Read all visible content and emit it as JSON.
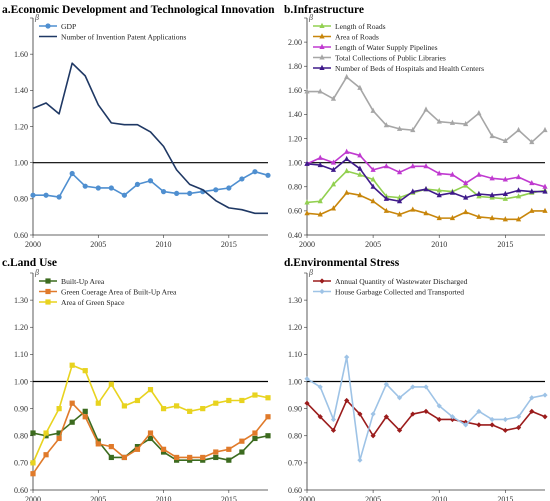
{
  "colors": {
    "axis": "#333333",
    "ref": "#000000",
    "grid": "#d9d9d9",
    "gdp": "#4f8fd0",
    "patent": "#1f3864",
    "roads_len": "#92d050",
    "roads_area": "#c8860b",
    "pipes": "#c03ad0",
    "libraries": "#a6a6a6",
    "beds": "#3f1a8a",
    "built_up": "#3c6b1f",
    "green_cov": "#e07a2a",
    "green_space": "#e8d31f",
    "wastewater": "#9b1c1c",
    "garbage": "#9ec3e6"
  },
  "chart_data": [
    {
      "id": "a",
      "type": "line",
      "title": "a.Economic Development and Technological Innovation",
      "ylabel": "β",
      "ylim": [
        0.6,
        1.8
      ],
      "yticks": [
        "0.60",
        "0.80",
        "1.00",
        "1.20",
        "1.40",
        "1.60",
        "1.80"
      ],
      "xlim": [
        2000,
        2018
      ],
      "xticks": [
        "2000",
        "2005",
        "2010",
        "2015"
      ],
      "reference_line": 1.0,
      "legend_position": "top-left",
      "series": [
        {
          "name": "GDP",
          "color": "gdp",
          "marker": "circle",
          "values": [
            0.82,
            0.82,
            0.81,
            0.94,
            0.87,
            0.86,
            0.86,
            0.82,
            0.88,
            0.9,
            0.84,
            0.83,
            0.83,
            0.84,
            0.85,
            0.86,
            0.91,
            0.95,
            0.93
          ]
        },
        {
          "name": "Number of Invention Patent Applications",
          "color": "patent",
          "marker": "none",
          "values": [
            1.3,
            1.33,
            1.27,
            1.55,
            1.48,
            1.32,
            1.22,
            1.21,
            1.21,
            1.17,
            1.09,
            0.96,
            0.88,
            0.85,
            0.79,
            0.75,
            0.74,
            0.72,
            0.72
          ]
        }
      ]
    },
    {
      "id": "b",
      "type": "line",
      "title": "b.Infrastructure",
      "ylabel": "β",
      "ylim": [
        0.4,
        2.2
      ],
      "yticks": [
        "0.40",
        "0.60",
        "0.80",
        "1.00",
        "1.20",
        "1.40",
        "1.60",
        "1.80",
        "2.00",
        "2.20"
      ],
      "xlim": [
        2000,
        2018
      ],
      "xticks": [
        "2000",
        "2005",
        "2010",
        "2015"
      ],
      "reference_line": 1.0,
      "legend_position": "top-left",
      "series": [
        {
          "name": "Length of Roads",
          "color": "roads_len",
          "marker": "triangle",
          "values": [
            0.67,
            0.68,
            0.82,
            0.93,
            0.9,
            0.86,
            0.72,
            0.71,
            0.75,
            0.78,
            0.77,
            0.76,
            0.81,
            0.72,
            0.71,
            0.7,
            0.72,
            0.75,
            0.77
          ]
        },
        {
          "name": "Area of Roads",
          "color": "roads_area",
          "marker": "triangle",
          "values": [
            0.58,
            0.57,
            0.62,
            0.75,
            0.73,
            0.68,
            0.6,
            0.57,
            0.61,
            0.58,
            0.54,
            0.54,
            0.59,
            0.55,
            0.54,
            0.53,
            0.53,
            0.6,
            0.6
          ]
        },
        {
          "name": "Length of Water Supply Pipelines",
          "color": "pipes",
          "marker": "triangle",
          "values": [
            0.99,
            1.04,
            1.0,
            1.09,
            1.06,
            0.94,
            0.97,
            0.92,
            0.97,
            0.97,
            0.91,
            0.9,
            0.83,
            0.9,
            0.87,
            0.86,
            0.88,
            0.83,
            0.8
          ]
        },
        {
          "name": "Total Collections of Public Libraries",
          "color": "libraries",
          "marker": "triangle",
          "values": [
            1.59,
            1.59,
            1.53,
            1.71,
            1.62,
            1.43,
            1.31,
            1.28,
            1.27,
            1.44,
            1.34,
            1.33,
            1.32,
            1.41,
            1.22,
            1.18,
            1.27,
            1.17,
            1.27
          ]
        },
        {
          "name": "Number of Beds of Hospitals and Health Centers",
          "color": "beds",
          "marker": "triangle",
          "values": [
            0.99,
            0.98,
            0.94,
            1.03,
            0.95,
            0.8,
            0.7,
            0.68,
            0.76,
            0.78,
            0.73,
            0.75,
            0.71,
            0.74,
            0.73,
            0.74,
            0.77,
            0.76,
            0.76
          ]
        }
      ]
    },
    {
      "id": "c",
      "type": "line",
      "title": "c.Land Use",
      "ylabel": "β",
      "ylim": [
        0.6,
        1.4
      ],
      "yticks": [
        "0.60",
        "0.70",
        "0.80",
        "0.90",
        "1.00",
        "1.10",
        "1.20",
        "1.30",
        "1.40"
      ],
      "xlim": [
        2000,
        2018
      ],
      "xticks": [
        "2000",
        "2005",
        "2010",
        "2015"
      ],
      "reference_line": 1.0,
      "legend_position": "top-left",
      "series": [
        {
          "name": "Built-Up Area",
          "color": "built_up",
          "marker": "square",
          "values": [
            0.81,
            0.8,
            0.81,
            0.85,
            0.89,
            0.78,
            0.72,
            0.72,
            0.76,
            0.79,
            0.74,
            0.71,
            0.71,
            0.71,
            0.72,
            0.71,
            0.74,
            0.79,
            0.8
          ]
        },
        {
          "name": "Green Coerage Area of Built-Up Area",
          "color": "green_cov",
          "marker": "square",
          "values": [
            0.66,
            0.73,
            0.79,
            0.92,
            0.87,
            0.77,
            0.76,
            0.72,
            0.75,
            0.81,
            0.75,
            0.72,
            0.72,
            0.72,
            0.74,
            0.75,
            0.78,
            0.81,
            0.87
          ]
        },
        {
          "name": "Area of Green Space",
          "color": "green_space",
          "marker": "square",
          "values": [
            0.7,
            0.81,
            0.9,
            1.06,
            1.04,
            0.92,
            0.99,
            0.91,
            0.93,
            0.97,
            0.9,
            0.91,
            0.89,
            0.9,
            0.92,
            0.93,
            0.93,
            0.95,
            0.94
          ]
        }
      ]
    },
    {
      "id": "d",
      "type": "line",
      "title": "d.Environmental Stress",
      "ylabel": "β",
      "ylim": [
        0.6,
        1.4
      ],
      "yticks": [
        "0.60",
        "0.70",
        "0.80",
        "0.90",
        "1.00",
        "1.10",
        "1.20",
        "1.30",
        "1.40"
      ],
      "xlim": [
        2000,
        2018
      ],
      "xticks": [
        "2000",
        "2005",
        "2010",
        "2015"
      ],
      "reference_line": 1.0,
      "legend_position": "top-left",
      "series": [
        {
          "name": "Annual Quantity of Wastewater Discharged",
          "color": "wastewater",
          "marker": "diamond",
          "values": [
            0.92,
            0.87,
            0.82,
            0.93,
            0.88,
            0.8,
            0.87,
            0.82,
            0.88,
            0.89,
            0.86,
            0.86,
            0.85,
            0.84,
            0.84,
            0.82,
            0.83,
            0.89,
            0.87
          ]
        },
        {
          "name": "House Garbage Collected and Transported",
          "color": "garbage",
          "marker": "diamond",
          "values": [
            1.01,
            0.98,
            0.86,
            1.09,
            0.71,
            0.88,
            0.99,
            0.94,
            0.98,
            0.98,
            0.91,
            0.87,
            0.84,
            0.89,
            0.86,
            0.86,
            0.87,
            0.94,
            0.95
          ]
        }
      ]
    }
  ]
}
